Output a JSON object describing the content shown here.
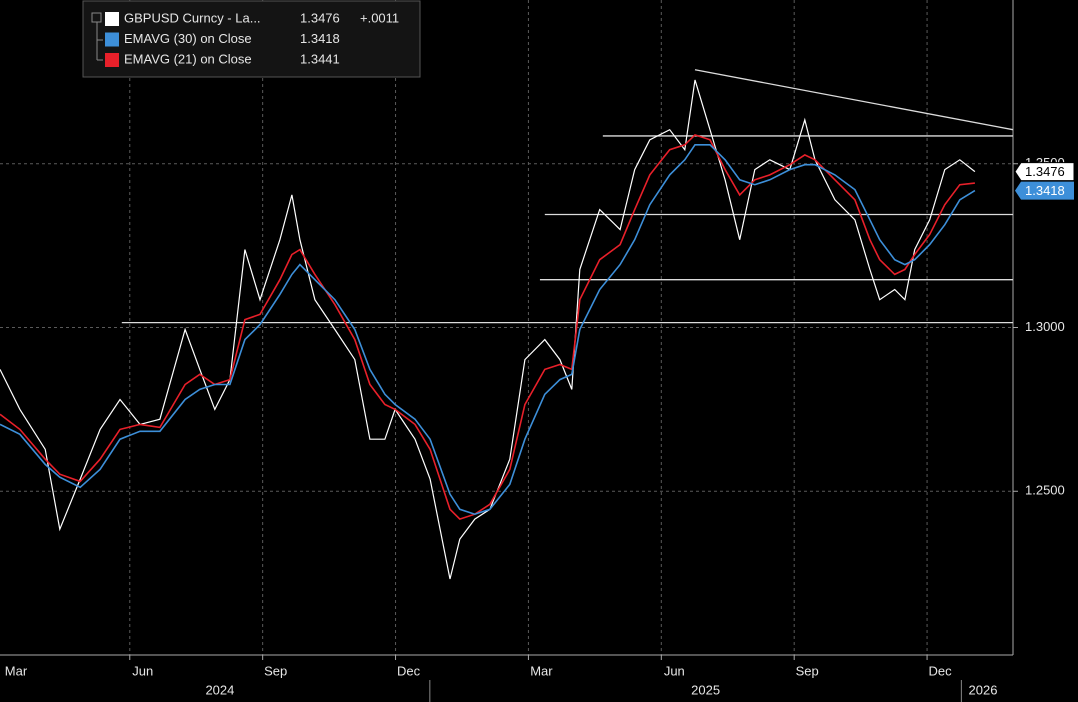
{
  "chart_data": {
    "type": "line",
    "x": [
      2.07,
      2.52,
      3.09,
      3.42,
      3.88,
      4.33,
      4.78,
      5.23,
      5.68,
      6.25,
      6.58,
      6.92,
      7.26,
      7.6,
      7.94,
      8.39,
      8.66,
      8.84,
      9.18,
      9.63,
      10.08,
      10.42,
      10.76,
      10.99,
      11.44,
      11.78,
      12.23,
      12.45,
      12.79,
      13.13,
      13.58,
      13.92,
      14.37,
      14.71,
      14.98,
      15.16,
      15.61,
      16.07,
      16.4,
      16.74,
      17.19,
      17.53,
      17.76,
      18.1,
      18.44,
      18.77,
      19.11,
      19.45,
      19.9,
      20.24,
      20.47,
      20.92,
      21.37,
      21.71,
      21.93,
      22.27,
      22.5,
      22.72,
      23.06,
      23.4,
      23.74,
      24.08
    ],
    "series": [
      {
        "name": "GBPUSD Curncy - La...",
        "color": "#ffffff",
        "legend_value": "1.3476",
        "legend_change": "+.0011",
        "values": [
          1.2872,
          1.275,
          1.2628,
          1.2384,
          1.2537,
          1.2689,
          1.278,
          1.2704,
          1.272,
          1.2994,
          1.2872,
          1.275,
          1.2841,
          1.3238,
          1.3085,
          1.3268,
          1.3405,
          1.3268,
          1.3085,
          1.2994,
          1.2902,
          1.2659,
          1.2659,
          1.275,
          1.2659,
          1.2537,
          1.2232,
          1.2354,
          1.2415,
          1.2445,
          1.2598,
          1.2902,
          1.2963,
          1.2902,
          1.2811,
          1.3177,
          1.336,
          1.3299,
          1.3482,
          1.3573,
          1.3604,
          1.3543,
          1.3756,
          1.3604,
          1.3451,
          1.3268,
          1.3482,
          1.3512,
          1.3482,
          1.3634,
          1.3512,
          1.339,
          1.3329,
          1.3177,
          1.3085,
          1.3116,
          1.3085,
          1.3238,
          1.3329,
          1.3482,
          1.3512,
          1.3476
        ]
      },
      {
        "name": "EMAVG (30)  on Close",
        "color": "#3d8fd9",
        "legend_value": "1.3418",
        "values": [
          1.2704,
          1.2674,
          1.2582,
          1.2543,
          1.2512,
          1.2567,
          1.2659,
          1.2683,
          1.2683,
          1.278,
          1.2811,
          1.2826,
          1.2826,
          1.2963,
          1.3009,
          1.3101,
          1.3162,
          1.3192,
          1.3146,
          1.3085,
          1.2994,
          1.2872,
          1.2796,
          1.2765,
          1.272,
          1.2659,
          1.2491,
          1.2445,
          1.243,
          1.2445,
          1.2521,
          1.2659,
          1.2796,
          1.2841,
          1.2857,
          1.2994,
          1.3116,
          1.3192,
          1.3268,
          1.3375,
          1.3466,
          1.3512,
          1.3558,
          1.3558,
          1.3512,
          1.3451,
          1.3436,
          1.3451,
          1.3482,
          1.3497,
          1.3497,
          1.3466,
          1.3421,
          1.3329,
          1.3268,
          1.3207,
          1.3192,
          1.3207,
          1.3253,
          1.3314,
          1.339,
          1.3418
        ]
      },
      {
        "name": "EMAVG (21)  on Close",
        "color": "#e8202a",
        "legend_value": "1.3441",
        "values": [
          1.2735,
          1.2689,
          1.2598,
          1.2552,
          1.253,
          1.2598,
          1.2689,
          1.2704,
          1.2695,
          1.2826,
          1.2857,
          1.2826,
          1.2841,
          1.3024,
          1.304,
          1.3146,
          1.3223,
          1.3238,
          1.3162,
          1.307,
          1.2963,
          1.2826,
          1.2765,
          1.275,
          1.2704,
          1.2628,
          1.2445,
          1.2415,
          1.243,
          1.246,
          1.2567,
          1.2765,
          1.2872,
          1.2887,
          1.2872,
          1.3085,
          1.3207,
          1.3253,
          1.336,
          1.3466,
          1.3543,
          1.3558,
          1.3588,
          1.3573,
          1.3482,
          1.3405,
          1.3451,
          1.3466,
          1.3497,
          1.3527,
          1.3512,
          1.3451,
          1.339,
          1.3268,
          1.3207,
          1.3162,
          1.3177,
          1.3223,
          1.3284,
          1.3375,
          1.3436,
          1.3441
        ]
      }
    ],
    "trendlines": [
      {
        "x": [
          4.82,
          24.94
        ],
        "y": [
          1.3015,
          1.3015
        ]
      },
      {
        "x": [
          14.26,
          24.94
        ],
        "y": [
          1.3146,
          1.3146
        ]
      },
      {
        "x": [
          14.37,
          24.94
        ],
        "y": [
          1.3345,
          1.3345
        ]
      },
      {
        "x": [
          15.68,
          24.94
        ],
        "y": [
          1.3585,
          1.3585
        ]
      },
      {
        "x": [
          17.76,
          24.94
        ],
        "y": [
          1.3787,
          1.3604
        ]
      }
    ],
    "xlim": [
      2.07,
      24.94
    ],
    "ylim": [
      1.2,
      1.4
    ],
    "xticks": [
      {
        "value": 2,
        "label": "Mar"
      },
      {
        "value": 5,
        "label": "Jun"
      },
      {
        "value": 8,
        "label": "Sep"
      },
      {
        "value": 11,
        "label": "Dec"
      },
      {
        "value": 14,
        "label": "Mar"
      },
      {
        "value": 17,
        "label": "Jun"
      },
      {
        "value": 20,
        "label": "Sep"
      },
      {
        "value": 23,
        "label": "Dec"
      }
    ],
    "years": [
      {
        "value": 0,
        "label": "2024"
      },
      {
        "value": 12,
        "label": "2025"
      },
      {
        "value": 24,
        "label": "2026"
      }
    ],
    "yticks": [
      {
        "value": 1.25,
        "label": "1.2500"
      },
      {
        "value": 1.3,
        "label": "1.3000"
      },
      {
        "value": 1.35,
        "label": "1.3500"
      }
    ],
    "grid": true
  }
}
